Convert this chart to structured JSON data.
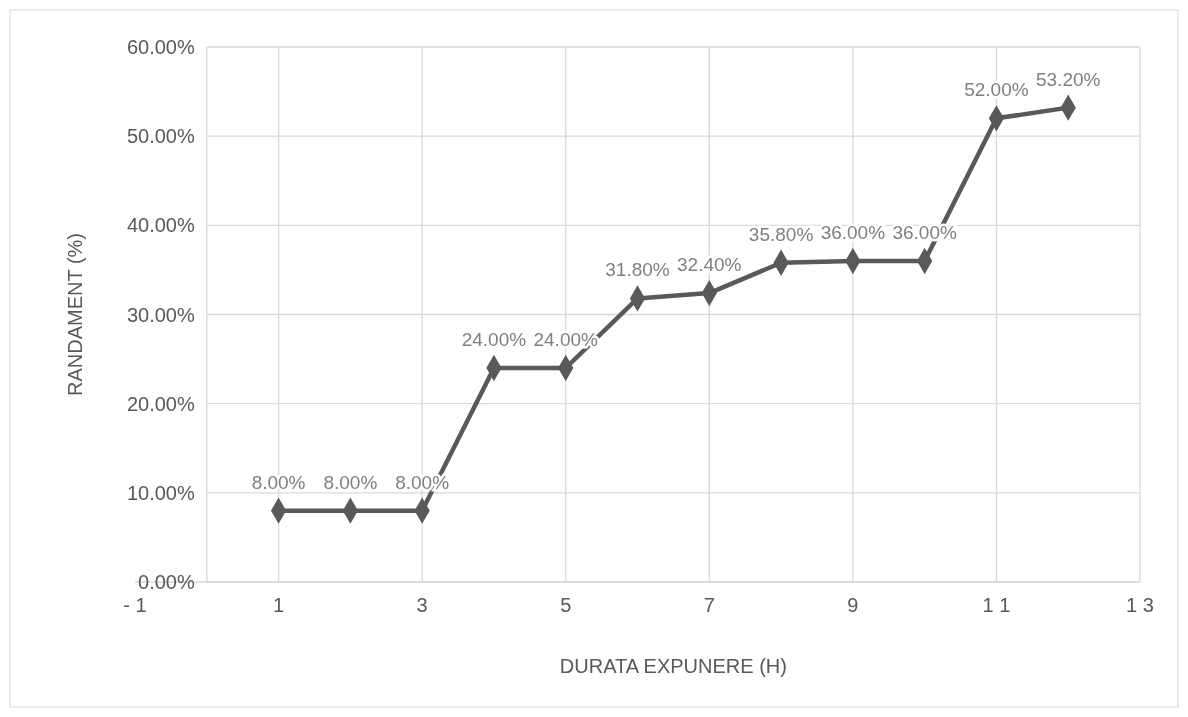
{
  "chart_data": {
    "type": "line",
    "xlabel": "DURATA EXPUNERE (H)",
    "ylabel": "RANDAMENT (%)",
    "x": [
      1,
      2,
      3,
      4,
      5,
      6,
      7,
      8,
      9,
      10,
      11,
      12
    ],
    "series": [
      {
        "color": "#595959",
        "values": [
          8,
          8,
          8,
          24,
          24,
          31.8,
          32.4,
          35.8,
          36,
          36,
          52,
          53.2
        ],
        "value_labels": [
          "8.00%",
          "8.00%",
          "8.00%",
          "24.00%",
          "24.00%",
          "31.80%",
          "32.40%",
          "35.80%",
          "36.00%",
          "36.00%",
          "52.00%",
          "53.20%"
        ]
      }
    ],
    "xlim": [
      -1,
      13
    ],
    "xticks": [
      {
        "value": -1,
        "label": "- 1"
      },
      1,
      3,
      5,
      7,
      9,
      {
        "value": 11,
        "label": "1 1"
      },
      {
        "value": 13,
        "label": "1 3"
      }
    ],
    "ylim": [
      0,
      60
    ],
    "yticks": [
      {
        "value": 0,
        "label": "0.00%"
      },
      {
        "value": 10,
        "label": "10.00%"
      },
      {
        "value": 20,
        "label": "20.00%"
      },
      {
        "value": 30,
        "label": "30.00%"
      },
      {
        "value": 40,
        "label": "40.00%"
      },
      {
        "value": 50,
        "label": "50.00%"
      },
      {
        "value": 60,
        "label": "60.00%"
      }
    ],
    "grid": true,
    "marker": "diamond",
    "line_style": "solid"
  }
}
